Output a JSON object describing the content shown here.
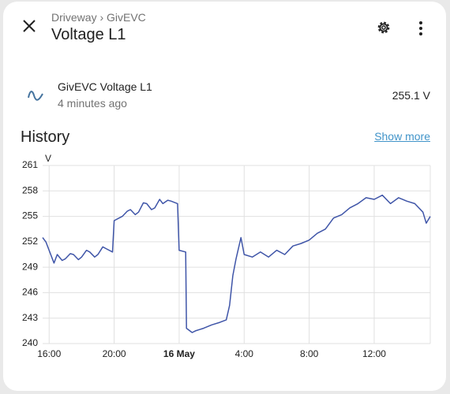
{
  "header": {
    "breadcrumb": "Driveway › GivEVC",
    "title": "Voltage L1"
  },
  "entity": {
    "name": "GivEVC Voltage L1",
    "updated": "4 minutes ago",
    "state": "255.1 V"
  },
  "history": {
    "title": "History",
    "link": "Show more"
  },
  "chart_data": {
    "type": "line",
    "y_label": "V",
    "color": "#3f55a8",
    "grid": true,
    "xlim": [
      15.6,
      39.45
    ],
    "ylim": [
      240,
      261
    ],
    "yticks": [
      240,
      243,
      246,
      249,
      252,
      255,
      258,
      261
    ],
    "xticks": [
      {
        "value": 16,
        "label": "16:00"
      },
      {
        "value": 20,
        "label": "20:00"
      },
      {
        "value": 24,
        "label": "16 May"
      },
      {
        "value": 28,
        "label": "4:00"
      },
      {
        "value": 32,
        "label": "8:00"
      },
      {
        "value": 36,
        "label": "12:00"
      }
    ],
    "x": [
      15.6,
      15.8,
      16.0,
      16.3,
      16.5,
      16.8,
      17.0,
      17.3,
      17.5,
      17.8,
      18.0,
      18.3,
      18.5,
      18.8,
      19.0,
      19.3,
      19.5,
      19.9,
      20.0,
      20.3,
      20.5,
      20.8,
      21.0,
      21.3,
      21.5,
      21.8,
      22.0,
      22.3,
      22.5,
      22.8,
      23.0,
      23.3,
      23.5,
      23.9,
      24.0,
      24.4,
      24.45,
      24.8,
      25.0,
      25.5,
      26.0,
      26.5,
      26.9,
      27.1,
      27.3,
      27.5,
      27.8,
      28.0,
      28.5,
      29.0,
      29.5,
      30.0,
      30.5,
      31.0,
      31.5,
      32.0,
      32.5,
      33.0,
      33.5,
      34.0,
      34.5,
      35.0,
      35.5,
      36.0,
      36.5,
      37.0,
      37.5,
      38.0,
      38.5,
      39.0,
      39.2,
      39.45
    ],
    "values": [
      252.5,
      252.0,
      251.0,
      249.5,
      250.5,
      249.8,
      250.0,
      250.6,
      250.5,
      249.9,
      250.2,
      251.0,
      250.8,
      250.2,
      250.5,
      251.4,
      251.2,
      250.8,
      254.5,
      254.8,
      255.0,
      255.6,
      255.8,
      255.2,
      255.5,
      256.6,
      256.5,
      255.8,
      256.0,
      257.0,
      256.5,
      256.9,
      256.8,
      256.5,
      251.0,
      250.8,
      241.8,
      241.3,
      241.5,
      241.8,
      242.2,
      242.5,
      242.8,
      244.5,
      248.0,
      250.0,
      252.5,
      250.5,
      250.2,
      250.8,
      250.2,
      251.0,
      250.5,
      251.5,
      251.8,
      252.2,
      253.0,
      253.5,
      254.8,
      255.2,
      256.0,
      256.5,
      257.2,
      257.0,
      257.5,
      256.5,
      257.2,
      256.8,
      256.5,
      255.5,
      254.2,
      255.0
    ]
  }
}
